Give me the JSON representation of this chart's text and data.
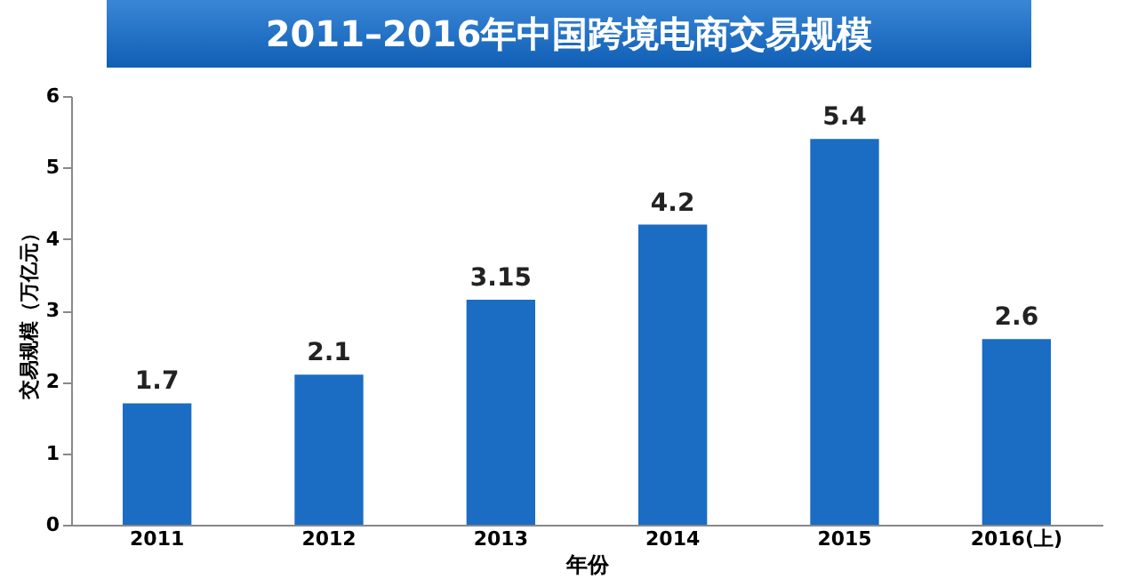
{
  "chart_data": {
    "type": "bar",
    "title": "2011–2016年中国跨境电商交易规模",
    "xlabel": "年份",
    "ylabel": "交易规模（万亿元）",
    "categories": [
      "2011",
      "2012",
      "2013",
      "2014",
      "2015",
      "2016(上)"
    ],
    "values": [
      1.7,
      2.1,
      3.15,
      4.2,
      5.4,
      2.6
    ],
    "color": "#1a6dc2",
    "ylim": [
      0,
      6
    ],
    "yticks": [
      0,
      1,
      2,
      3,
      4,
      5,
      6
    ],
    "grid": false,
    "data_labels": true
  }
}
